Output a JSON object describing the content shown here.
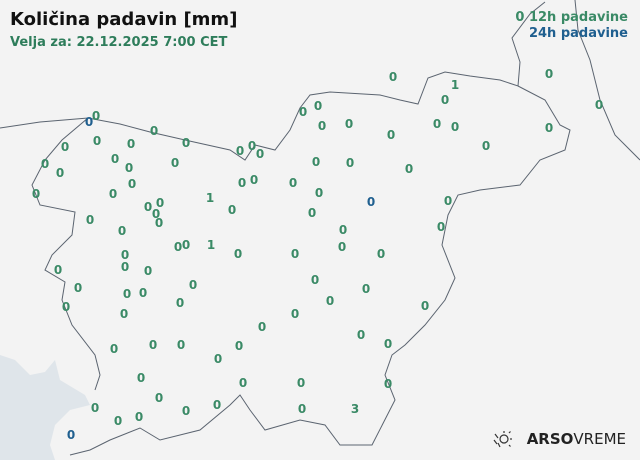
{
  "header": {
    "title": "Količina padavin [mm]",
    "valid": "Velja za: 22.12.2025 7:00 CET"
  },
  "legend": {
    "sample": "0",
    "h12": "12h padavine",
    "h24": "24h padavine"
  },
  "colors": {
    "h12": "#3a8a66",
    "h24": "#1f5f8f",
    "sea": "#dfe5ea",
    "land": "#f3f3f3",
    "border": "#5b6470"
  },
  "stations": [
    {
      "v": "0",
      "t": "12h"
    },
    {
      "v": "1",
      "t": "12h"
    },
    {
      "v": "0",
      "t": "12h"
    },
    {
      "v": "0",
      "t": "12h"
    },
    {
      "v": "0",
      "t": "12h"
    },
    {
      "v": "0",
      "t": "12h"
    },
    {
      "v": "0",
      "t": "12h"
    },
    {
      "v": "0",
      "t": "12h"
    },
    {
      "v": "0",
      "t": "12h"
    },
    {
      "v": "0",
      "t": "12h"
    },
    {
      "v": "0",
      "t": "12h"
    },
    {
      "v": "0",
      "t": "12h"
    },
    {
      "v": "0",
      "t": "12h"
    },
    {
      "v": "0",
      "t": "12h"
    },
    {
      "v": "0",
      "t": "12h"
    },
    {
      "v": "0",
      "t": "12h"
    },
    {
      "v": "0",
      "t": "12h"
    },
    {
      "v": "0",
      "t": "12h"
    },
    {
      "v": "0",
      "t": "12h"
    },
    {
      "v": "0",
      "t": "12h"
    },
    {
      "v": "0",
      "t": "12h"
    },
    {
      "v": "0",
      "t": "12h"
    },
    {
      "v": "0",
      "t": "12h"
    },
    {
      "v": "0",
      "t": "12h"
    },
    {
      "v": "0",
      "t": "12h"
    },
    {
      "v": "0",
      "t": "12h"
    },
    {
      "v": "0",
      "t": "12h"
    },
    {
      "v": "0",
      "t": "12h"
    },
    {
      "v": "0",
      "t": "12h"
    },
    {
      "v": "0",
      "t": "12h"
    },
    {
      "v": "0",
      "t": "12h"
    },
    {
      "v": "0",
      "t": "12h"
    },
    {
      "v": "0",
      "t": "12h"
    },
    {
      "v": "1",
      "t": "12h"
    },
    {
      "v": "0",
      "t": "12h"
    },
    {
      "v": "0",
      "t": "12h"
    },
    {
      "v": "0",
      "t": "12h"
    },
    {
      "v": "0",
      "t": "12h"
    },
    {
      "v": "0",
      "t": "12h"
    },
    {
      "v": "0",
      "t": "12h"
    },
    {
      "v": "0",
      "t": "12h"
    },
    {
      "v": "0",
      "t": "12h"
    },
    {
      "v": "0",
      "t": "12h"
    },
    {
      "v": "0",
      "t": "12h"
    },
    {
      "v": "0",
      "t": "12h"
    },
    {
      "v": "0",
      "t": "12h"
    },
    {
      "v": "0",
      "t": "12h"
    },
    {
      "v": "0",
      "t": "12h"
    },
    {
      "v": "0",
      "t": "12h"
    },
    {
      "v": "0",
      "t": "12h"
    },
    {
      "v": "1",
      "t": "12h"
    },
    {
      "v": "0",
      "t": "12h"
    },
    {
      "v": "0",
      "t": "12h"
    },
    {
      "v": "0",
      "t": "12h"
    },
    {
      "v": "0",
      "t": "12h"
    },
    {
      "v": "0",
      "t": "12h"
    },
    {
      "v": "0",
      "t": "12h"
    },
    {
      "v": "0",
      "t": "12h"
    },
    {
      "v": "0",
      "t": "12h"
    },
    {
      "v": "0",
      "t": "12h"
    },
    {
      "v": "0",
      "t": "12h"
    },
    {
      "v": "0",
      "t": "12h"
    },
    {
      "v": "0",
      "t": "12h"
    },
    {
      "v": "0",
      "t": "12h"
    },
    {
      "v": "0",
      "t": "12h"
    },
    {
      "v": "0",
      "t": "12h"
    },
    {
      "v": "0",
      "t": "12h"
    },
    {
      "v": "0",
      "t": "12h"
    },
    {
      "v": "0",
      "t": "12h"
    },
    {
      "v": "0",
      "t": "12h"
    },
    {
      "v": "0",
      "t": "12h"
    },
    {
      "v": "0",
      "t": "12h"
    },
    {
      "v": "0",
      "t": "12h"
    },
    {
      "v": "0",
      "t": "12h"
    },
    {
      "v": "0",
      "t": "12h"
    },
    {
      "v": "0",
      "t": "12h"
    },
    {
      "v": "0",
      "t": "12h"
    },
    {
      "v": "0",
      "t": "12h"
    },
    {
      "v": "0",
      "t": "12h"
    },
    {
      "v": "0",
      "t": "12h"
    },
    {
      "v": "0",
      "t": "12h"
    },
    {
      "v": "0",
      "t": "12h"
    },
    {
      "v": "0",
      "t": "12h"
    },
    {
      "v": "0",
      "t": "12h"
    },
    {
      "v": "0",
      "t": "12h"
    },
    {
      "v": "0",
      "t": "12h"
    },
    {
      "v": "0",
      "t": "12h"
    },
    {
      "v": "0",
      "t": "12h"
    },
    {
      "v": "0",
      "t": "12h"
    },
    {
      "v": "0",
      "t": "12h"
    },
    {
      "v": "0",
      "t": "12h"
    },
    {
      "v": "0",
      "t": "12h"
    },
    {
      "v": "3",
      "t": "12h"
    },
    {
      "v": "0",
      "t": "24h"
    },
    {
      "v": "0",
      "t": "24h"
    },
    {
      "v": "0",
      "t": "24h"
    }
  ],
  "logo": {
    "brand": "ARSO",
    "product": "VREME",
    "icon": "sun-rain-icon"
  }
}
